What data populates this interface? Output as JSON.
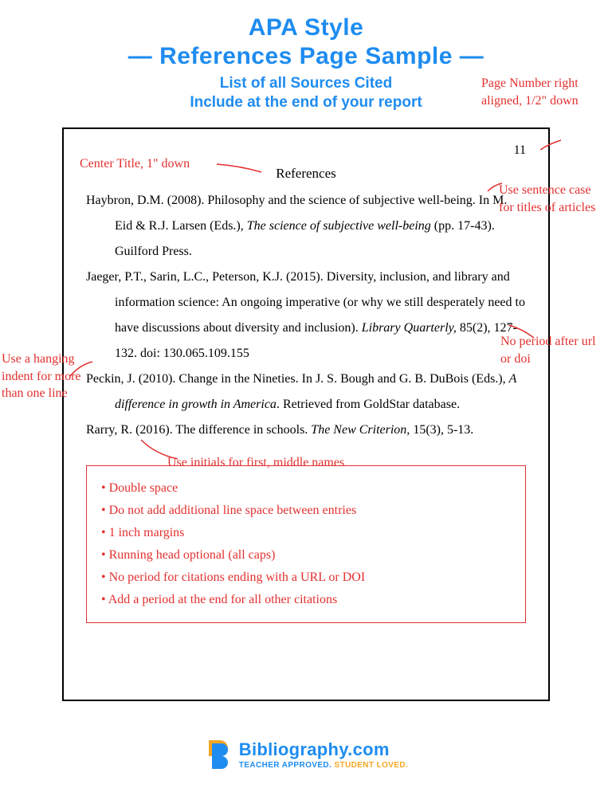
{
  "colors": {
    "accent_blue": "#1e8cf0",
    "annotation_red": "#e2302f",
    "brand_orange": "#f5a623",
    "text_black": "#000000",
    "background": "#ffffff"
  },
  "header": {
    "title_line1": "APA Style",
    "title_line2": "—  References Page Sample  —",
    "subtitle1": "List of all Sources Cited",
    "subtitle2": "Include at the end of your report"
  },
  "page": {
    "page_number": "11",
    "references_title": "References",
    "entries": [
      {
        "html": "Haybron, D.M. (2008). Philosophy and the science of subjective well-being. In M. Eid & R.J. Larsen (Eds.), <em>The science of subjective well-being</em> (pp. 17-43). Guilford Press."
      },
      {
        "html": "Jaeger, P.T., Sarin, L.C., Peterson, K.J. (2015). Diversity, inclusion, and library and information science: An ongoing imperative (or why we still desperately need to have discussions about diversity and inclusion). <em>Library Quarterly,</em> 85(2), 127-132. doi: 130.065.109.155"
      },
      {
        "html": "Peckin, J. (2010). Change in the Nineties. In J. S. Bough and G. B. DuBois (Eds.), <em>A difference in growth in America</em>. Retrieved from GoldStar database."
      },
      {
        "html": "Rarry, R. (2016). The difference in schools. <em>The New Criterion,</em> 15(3), 5-13."
      }
    ]
  },
  "annotations": {
    "page_number_note": "Page Number right aligned, 1/2\" down",
    "center_title_note": "Center Title, 1\" down",
    "sentence_case_note": "Use sentence case for titles of articles",
    "hanging_indent_note": "Use a hanging indent for more than one line",
    "no_period_note": "No period after url or doi",
    "initials_note": "Use initials for first, middle names"
  },
  "tips": [
    "• Double space",
    "• Do not add additional line space between entries",
    "• 1 inch margins",
    "• Running head optional (all caps)",
    "• No period for citations ending with a URL or DOI",
    "• Add a period at the end for all other citations"
  ],
  "footer": {
    "brand_name": "Bibliography.com",
    "tagline_part1": "TEACHER APPROVED. ",
    "tagline_part2": "STUDENT LOVED."
  }
}
